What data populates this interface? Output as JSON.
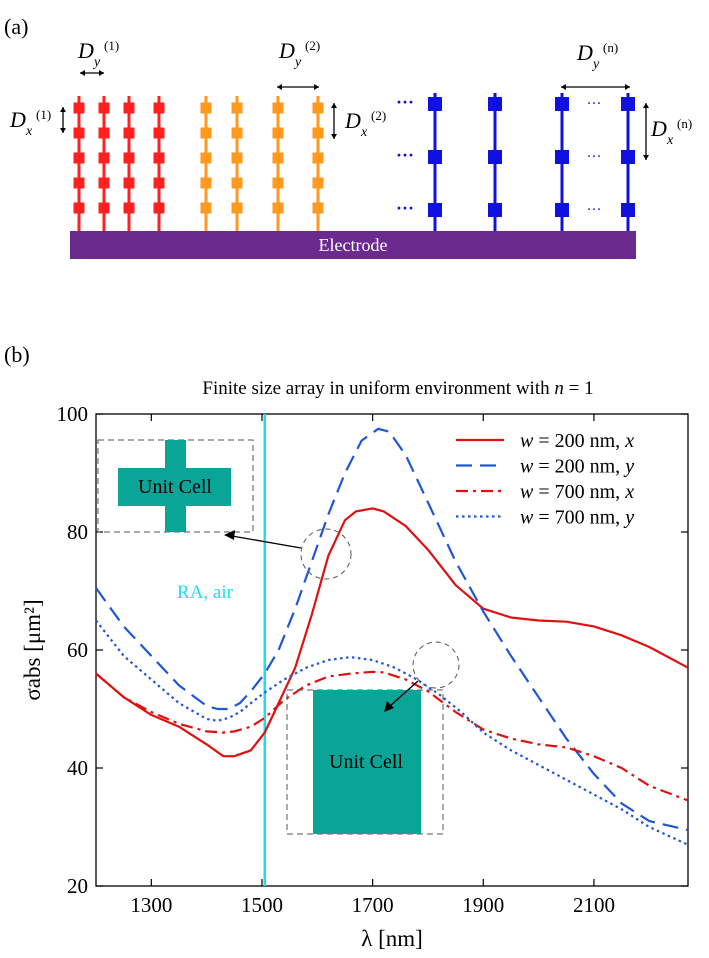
{
  "panel_a": {
    "label": "(a)",
    "electrode_label": "Electrode",
    "dy_labels": [
      {
        "main": "D",
        "sub": "y",
        "sup": "(1)"
      },
      {
        "main": "D",
        "sub": "y",
        "sup": "(2)"
      },
      {
        "main": "D",
        "sub": "y",
        "sup": "(n)"
      }
    ],
    "dx_labels": [
      {
        "main": "D",
        "sub": "x",
        "sup": "(1)"
      },
      {
        "main": "D",
        "sub": "x",
        "sup": "(2)"
      },
      {
        "main": "D",
        "sub": "x",
        "sup": "(n)"
      }
    ],
    "ellipsis": "···",
    "colors": {
      "group1": "#ff2020",
      "group2": "#ff9a1f",
      "group3": "#1010e0",
      "electrode": "#6a2a8e"
    }
  },
  "panel_b": {
    "label": "(b)",
    "title": "Finite size array in uniform environment with n = 1",
    "inset_top_label": "Unit Cell",
    "inset_bottom_label": "Unit Cell",
    "ra_label": "RA, air",
    "ra_color": "#19e0ee",
    "inset_color": "#0aa596"
  },
  "chart_data": {
    "type": "line",
    "title": "Finite size array in uniform environment with n = 1",
    "xlabel": "λ [nm]",
    "ylabel": "σabs [μm²]",
    "xlim": [
      1200,
      2270
    ],
    "ylim": [
      20,
      100
    ],
    "xticks": [
      1300,
      1500,
      1700,
      1900,
      2100
    ],
    "yticks": [
      20,
      40,
      60,
      80,
      100
    ],
    "vline": {
      "x": 1505,
      "label": "RA, air"
    },
    "legend_position": "top-right",
    "series": [
      {
        "name": "w = 200 nm, x",
        "color": "#e01010",
        "dash": "solid",
        "x": [
          1200,
          1250,
          1300,
          1350,
          1400,
          1430,
          1450,
          1480,
          1505,
          1530,
          1560,
          1590,
          1620,
          1650,
          1670,
          1700,
          1720,
          1760,
          1800,
          1850,
          1900,
          1950,
          2000,
          2050,
          2100,
          2150,
          2200,
          2270
        ],
        "y": [
          56,
          52,
          49,
          47,
          44,
          42,
          42,
          43,
          46,
          51,
          57,
          66,
          76,
          82,
          83.5,
          84,
          83.5,
          81,
          77,
          71,
          67,
          65.5,
          65,
          64.8,
          64,
          62.5,
          60.5,
          57
        ]
      },
      {
        "name": "w = 200 nm, y",
        "color": "#1f56d6",
        "dash": "long-dash",
        "x": [
          1200,
          1250,
          1300,
          1350,
          1400,
          1420,
          1440,
          1460,
          1480,
          1505,
          1530,
          1560,
          1590,
          1620,
          1650,
          1680,
          1710,
          1730,
          1760,
          1800,
          1850,
          1900,
          1950,
          2000,
          2050,
          2100,
          2150,
          2200,
          2270
        ],
        "y": [
          70.5,
          64,
          59,
          54,
          50.5,
          50,
          50,
          51,
          53,
          56,
          60,
          67,
          75,
          83,
          90,
          95.5,
          97.5,
          97,
          93,
          85,
          75,
          66.5,
          59,
          52,
          45,
          39,
          34,
          31,
          29.5
        ]
      },
      {
        "name": "w = 700 nm, x",
        "color": "#e01010",
        "dash": "dash-dot",
        "x": [
          1200,
          1250,
          1300,
          1350,
          1400,
          1430,
          1450,
          1480,
          1505,
          1540,
          1580,
          1620,
          1660,
          1700,
          1720,
          1760,
          1800,
          1850,
          1900,
          1950,
          2000,
          2050,
          2100,
          2150,
          2200,
          2270
        ],
        "y": [
          56,
          52,
          49.5,
          47.5,
          46.2,
          46,
          46.2,
          47,
          48.5,
          51.5,
          54,
          55.5,
          56,
          56.3,
          56.2,
          55,
          53,
          49.5,
          46.5,
          45,
          44,
          43.5,
          42,
          40,
          37,
          34.5
        ]
      },
      {
        "name": "w = 700 nm, y",
        "color": "#1f56d6",
        "dash": "dotted",
        "x": [
          1200,
          1250,
          1300,
          1350,
          1400,
          1420,
          1440,
          1460,
          1480,
          1505,
          1540,
          1580,
          1620,
          1660,
          1700,
          1740,
          1780,
          1820,
          1860,
          1900,
          1950,
          2000,
          2050,
          2100,
          2150,
          2200,
          2270
        ],
        "y": [
          65,
          59,
          55,
          51,
          48.3,
          48,
          48.5,
          49.5,
          51,
          52.8,
          55,
          57,
          58.3,
          58.8,
          58.3,
          57,
          55,
          52.5,
          49.5,
          46,
          43,
          40.5,
          38,
          35.5,
          33,
          30,
          27
        ]
      }
    ]
  }
}
